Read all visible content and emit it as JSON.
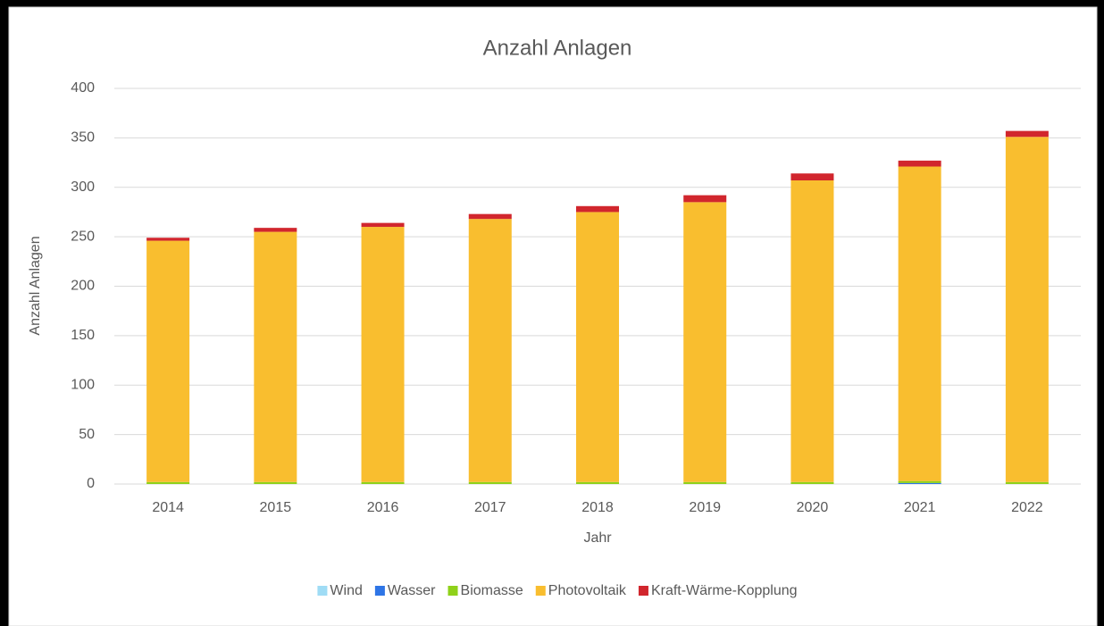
{
  "chart_data": {
    "type": "stacked-bar",
    "title": "Anzahl Anlagen",
    "x_label": "Jahr",
    "y_label": "Anzahl Anlagen",
    "categories": [
      "2014",
      "2015",
      "2016",
      "2017",
      "2018",
      "2019",
      "2020",
      "2021",
      "2022"
    ],
    "series": [
      {
        "name": "Wind",
        "color": "#9fdcf5",
        "values": [
          0,
          0,
          0,
          0,
          0,
          0,
          0,
          0,
          0
        ]
      },
      {
        "name": "Wasser",
        "color": "#2e75e6",
        "values": [
          0,
          0,
          0,
          0,
          0,
          0,
          0,
          1,
          0
        ]
      },
      {
        "name": "Biomasse",
        "color": "#8fd11a",
        "values": [
          2,
          2,
          2,
          2,
          2,
          2,
          2,
          2,
          2
        ]
      },
      {
        "name": "Photovoltaik",
        "color": "#f9be2f",
        "values": [
          244,
          253,
          258,
          266,
          273,
          283,
          305,
          318,
          349
        ]
      },
      {
        "name": "Kraft-Wärme-Kopplung",
        "color": "#d1262d",
        "values": [
          3,
          4,
          4,
          5,
          6,
          7,
          7,
          6,
          6
        ]
      }
    ],
    "ylim": [
      0,
      400
    ],
    "yticks": [
      0,
      50,
      100,
      150,
      200,
      250,
      300,
      350,
      400
    ],
    "grid": true,
    "legend": "bottom"
  }
}
